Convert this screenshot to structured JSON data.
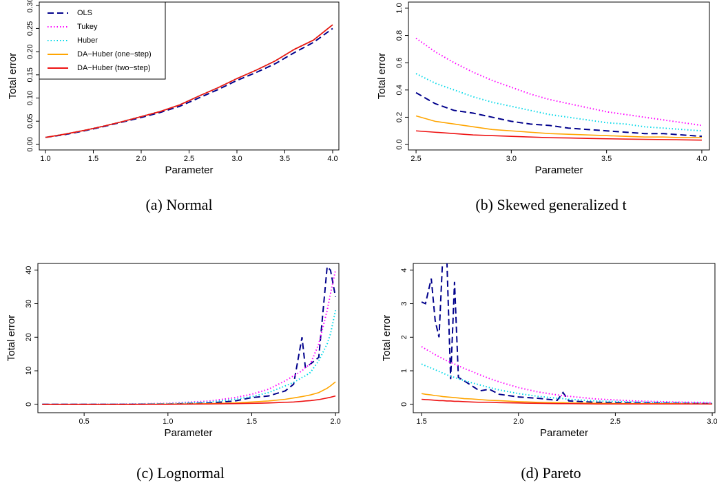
{
  "chart_data": [
    {
      "type": "line",
      "caption": "(a) Normal",
      "xlabel": "Parameter",
      "ylabel": "Total error",
      "x": [
        1.0,
        1.2,
        1.4,
        1.6,
        1.8,
        2.0,
        2.2,
        2.4,
        2.6,
        2.8,
        3.0,
        3.2,
        3.4,
        3.6,
        3.8,
        4.0
      ],
      "xlim": [
        0.935,
        4.065
      ],
      "ylim": [
        -0.012,
        0.307
      ],
      "xticks": [
        {
          "value": 1,
          "label": "1.0"
        },
        1.5,
        {
          "value": 2,
          "label": "2.0"
        },
        2.5,
        {
          "value": 3,
          "label": "3.0"
        },
        3.5,
        {
          "value": 4,
          "label": "4.0"
        }
      ],
      "yticks": [
        {
          "value": 0,
          "label": "0.00"
        },
        0.05,
        {
          "value": 0.1,
          "label": "0.10"
        },
        0.15,
        {
          "value": 0.2,
          "label": "0.20"
        },
        0.25,
        {
          "value": 0.3,
          "label": "0.30"
        }
      ],
      "legend": "top-left",
      "series": [
        {
          "name": "OLS",
          "color": "#00008b",
          "style": "dashed",
          "values": [
            0.015,
            0.021,
            0.029,
            0.038,
            0.048,
            0.058,
            0.069,
            0.082,
            0.1,
            0.118,
            0.138,
            0.155,
            0.174,
            0.198,
            0.22,
            0.25
          ]
        },
        {
          "name": "Tukey",
          "color": "#ff00ff",
          "style": "dotted",
          "values": [
            0.015,
            0.022,
            0.03,
            0.039,
            0.049,
            0.06,
            0.071,
            0.085,
            0.104,
            0.122,
            0.142,
            0.16,
            0.18,
            0.205,
            0.225,
            0.258
          ]
        },
        {
          "name": "Huber",
          "color": "#00d8e8",
          "style": "dotted",
          "values": [
            0.015,
            0.022,
            0.03,
            0.039,
            0.049,
            0.06,
            0.071,
            0.085,
            0.104,
            0.122,
            0.142,
            0.16,
            0.18,
            0.205,
            0.225,
            0.258
          ]
        },
        {
          "name": "DA−Huber (one−step)",
          "color": "#ffa500",
          "style": "solid",
          "values": [
            0.015,
            0.022,
            0.03,
            0.039,
            0.049,
            0.06,
            0.071,
            0.085,
            0.104,
            0.122,
            0.142,
            0.16,
            0.18,
            0.205,
            0.225,
            0.258
          ]
        },
        {
          "name": "DA−Huber (two−step)",
          "color": "#ee1111",
          "style": "solid",
          "values": [
            0.015,
            0.022,
            0.03,
            0.039,
            0.049,
            0.06,
            0.071,
            0.085,
            0.104,
            0.122,
            0.142,
            0.16,
            0.18,
            0.205,
            0.225,
            0.258
          ]
        }
      ]
    },
    {
      "type": "line",
      "caption": "(b) Skewed generalized t",
      "xlabel": "Parameter",
      "ylabel": "Total error",
      "x": [
        2.5,
        2.6,
        2.7,
        2.8,
        2.9,
        3.0,
        3.1,
        3.2,
        3.3,
        3.4,
        3.5,
        3.6,
        3.7,
        3.8,
        3.9,
        4.0
      ],
      "xlim": [
        2.46,
        4.04
      ],
      "ylim": [
        -0.04,
        1.045
      ],
      "xticks": [
        2.5,
        {
          "value": 3,
          "label": "3.0"
        },
        3.5,
        {
          "value": 4,
          "label": "4.0"
        }
      ],
      "yticks": [
        {
          "value": 0,
          "label": "0.0"
        },
        0.2,
        0.4,
        0.6,
        0.8,
        {
          "value": 1,
          "label": "1.0"
        }
      ],
      "series": [
        {
          "color": "#00008b",
          "style": "dashed",
          "values": [
            0.38,
            0.3,
            0.25,
            0.23,
            0.2,
            0.17,
            0.15,
            0.14,
            0.12,
            0.11,
            0.1,
            0.09,
            0.08,
            0.08,
            0.07,
            0.06
          ]
        },
        {
          "color": "#ff00ff",
          "style": "dotted",
          "values": [
            0.78,
            0.68,
            0.6,
            0.53,
            0.47,
            0.42,
            0.37,
            0.33,
            0.3,
            0.27,
            0.24,
            0.22,
            0.2,
            0.18,
            0.16,
            0.14
          ]
        },
        {
          "color": "#00d8e8",
          "style": "dotted",
          "values": [
            0.52,
            0.45,
            0.4,
            0.35,
            0.31,
            0.28,
            0.25,
            0.22,
            0.2,
            0.18,
            0.16,
            0.15,
            0.13,
            0.12,
            0.11,
            0.1
          ]
        },
        {
          "color": "#ffa500",
          "style": "solid",
          "values": [
            0.21,
            0.17,
            0.15,
            0.13,
            0.11,
            0.1,
            0.09,
            0.08,
            0.075,
            0.07,
            0.065,
            0.06,
            0.055,
            0.055,
            0.05,
            0.05
          ]
        },
        {
          "color": "#ee1111",
          "style": "solid",
          "values": [
            0.1,
            0.09,
            0.08,
            0.07,
            0.065,
            0.06,
            0.055,
            0.05,
            0.048,
            0.045,
            0.042,
            0.04,
            0.038,
            0.036,
            0.034,
            0.032
          ]
        }
      ]
    },
    {
      "type": "line",
      "caption": "(c) Lognormal",
      "xlabel": "Parameter",
      "ylabel": "Total error",
      "x": [
        0.25,
        0.5,
        0.75,
        1.0,
        1.25,
        1.4,
        1.5,
        1.6,
        1.7,
        1.75,
        1.8,
        1.82,
        1.85,
        1.9,
        1.95,
        1.97,
        2.0
      ],
      "xlim": [
        0.224,
        2.02
      ],
      "ylim": [
        -2.5,
        42
      ],
      "xticks": [
        0.5,
        {
          "value": 1,
          "label": "1.0"
        },
        1.5,
        {
          "value": 2,
          "label": "2.0"
        }
      ],
      "yticks": [
        0,
        10,
        20,
        30,
        40
      ],
      "series": [
        {
          "color": "#00008b",
          "style": "dashed",
          "values": [
            0,
            0,
            0,
            0.1,
            0.4,
            1,
            2,
            2.5,
            4,
            6,
            20,
            11,
            12,
            14,
            41,
            40,
            32
          ]
        },
        {
          "color": "#ff00ff",
          "style": "dotted",
          "values": [
            0,
            0,
            0.1,
            0.3,
            1,
            2,
            3,
            4.5,
            7,
            8.5,
            10,
            11,
            12,
            18,
            28,
            33,
            40
          ]
        },
        {
          "color": "#00d8e8",
          "style": "dotted",
          "values": [
            0,
            0,
            0.05,
            0.2,
            0.7,
            1.5,
            2.3,
            3.5,
            5.5,
            6.5,
            8,
            8.5,
            9.5,
            13,
            18,
            21,
            28
          ]
        },
        {
          "color": "#ffa500",
          "style": "solid",
          "values": [
            0,
            0,
            0,
            0.05,
            0.2,
            0.4,
            0.7,
            1.0,
            1.5,
            1.9,
            2.3,
            2.5,
            2.8,
            3.5,
            4.8,
            5.5,
            6.7
          ]
        },
        {
          "color": "#ee1111",
          "style": "solid",
          "values": [
            0,
            0,
            0,
            0,
            0.1,
            0.2,
            0.3,
            0.4,
            0.6,
            0.7,
            0.9,
            1.0,
            1.1,
            1.4,
            1.9,
            2.1,
            2.5
          ]
        }
      ]
    },
    {
      "type": "line",
      "caption": "(d) Pareto",
      "xlabel": "Parameter",
      "ylabel": "Total error",
      "x": [
        1.5,
        1.52,
        1.55,
        1.57,
        1.59,
        1.61,
        1.63,
        1.65,
        1.67,
        1.69,
        1.72,
        1.76,
        1.8,
        1.85,
        1.9,
        2.0,
        2.1,
        2.2,
        2.23,
        2.26,
        2.4,
        2.6,
        2.8,
        3.0
      ],
      "xlim": [
        1.457,
        3.014
      ],
      "ylim": [
        -0.25,
        4.2
      ],
      "xticks": [
        1.5,
        {
          "value": 2,
          "label": "2.0"
        },
        2.5,
        {
          "value": 3,
          "label": "3.0"
        }
      ],
      "yticks": [
        0,
        1,
        2,
        3,
        4
      ],
      "series": [
        {
          "color": "#00008b",
          "style": "dashed",
          "values": [
            3.05,
            3.0,
            3.75,
            2.5,
            2.0,
            4.5,
            4.4,
            0.75,
            3.65,
            0.8,
            0.7,
            0.55,
            0.4,
            0.45,
            0.3,
            0.22,
            0.18,
            0.12,
            0.35,
            0.1,
            0.06,
            0.04,
            0.03,
            0.02
          ]
        },
        {
          "color": "#ff00ff",
          "style": "dotted",
          "values": [
            1.72,
            1.65,
            1.55,
            1.48,
            1.42,
            1.36,
            1.3,
            1.25,
            1.2,
            1.15,
            1.07,
            0.98,
            0.88,
            0.77,
            0.67,
            0.5,
            0.37,
            0.28,
            0.26,
            0.24,
            0.16,
            0.1,
            0.07,
            0.05
          ]
        },
        {
          "color": "#00d8e8",
          "style": "dotted",
          "values": [
            1.2,
            1.15,
            1.08,
            1.03,
            0.98,
            0.93,
            0.88,
            0.84,
            0.8,
            0.76,
            0.71,
            0.64,
            0.58,
            0.5,
            0.43,
            0.32,
            0.24,
            0.18,
            0.17,
            0.15,
            0.1,
            0.07,
            0.05,
            0.03
          ]
        },
        {
          "color": "#ffa500",
          "style": "solid",
          "values": [
            0.32,
            0.3,
            0.28,
            0.26,
            0.25,
            0.23,
            0.22,
            0.21,
            0.2,
            0.19,
            0.17,
            0.16,
            0.14,
            0.12,
            0.11,
            0.08,
            0.06,
            0.05,
            0.05,
            0.04,
            0.03,
            0.02,
            0.02,
            0.01
          ]
        },
        {
          "color": "#ee1111",
          "style": "solid",
          "values": [
            0.15,
            0.14,
            0.13,
            0.12,
            0.11,
            0.11,
            0.1,
            0.1,
            0.09,
            0.09,
            0.08,
            0.07,
            0.06,
            0.06,
            0.05,
            0.04,
            0.03,
            0.02,
            0.02,
            0.02,
            0.01,
            0.01,
            0.01,
            0.01
          ]
        }
      ]
    }
  ]
}
